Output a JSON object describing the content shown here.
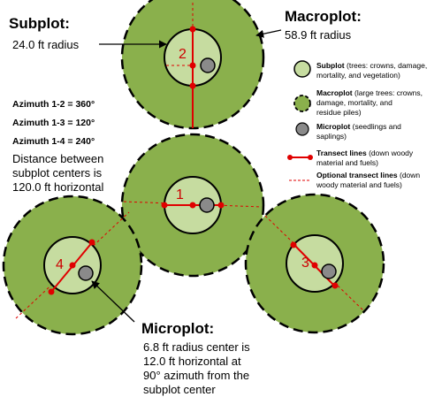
{
  "colors": {
    "macro_fill": "#8ab04c",
    "sub_fill": "#c6dca0",
    "micro_fill": "#8a8a8a",
    "transect": "#e00000",
    "outline": "#000000"
  },
  "callouts": {
    "subplot": {
      "title": "Subplot:",
      "text": "24.0 ft radius"
    },
    "macroplot": {
      "title": "Macroplot:",
      "text": "58.9 ft radius"
    },
    "microplot": {
      "title": "Microplot:",
      "lines": [
        "6.8 ft radius center is",
        "12.0 ft horizontal at",
        "90° azimuth from the",
        "subplot center"
      ]
    }
  },
  "azimuths": [
    "Azimuth 1-2 = 360°",
    "Azimuth 1-3 = 120°",
    "Azimuth 1-4 = 240°"
  ],
  "distance_lines": [
    "Distance between",
    "subplot centers is",
    "120.0 ft horizontal"
  ],
  "plots": [
    {
      "label": "1"
    },
    {
      "label": "2"
    },
    {
      "label": "3"
    },
    {
      "label": "4"
    }
  ],
  "legend": [
    {
      "icon": "subplot-icon",
      "bold": "Subplot",
      "lines": [
        " (trees: crowns, damage,",
        "mortality, and vegetation)"
      ]
    },
    {
      "icon": "macroplot-icon",
      "bold": "Macroplot",
      "lines": [
        " (large trees: crowns,",
        "damage, mortality, and",
        "residue piles)"
      ]
    },
    {
      "icon": "microplot-icon",
      "bold": "Microplot",
      "lines": [
        " (seedlings and",
        "saplings)"
      ]
    },
    {
      "icon": "transect-line-icon",
      "bold": "Transect lines",
      "lines": [
        " (down woody",
        "material and fuels)"
      ]
    },
    {
      "icon": "optional-transect-line-icon",
      "bold": "Optional transect lines",
      "lines": [
        " (down",
        "woody material and fuels)"
      ]
    }
  ]
}
